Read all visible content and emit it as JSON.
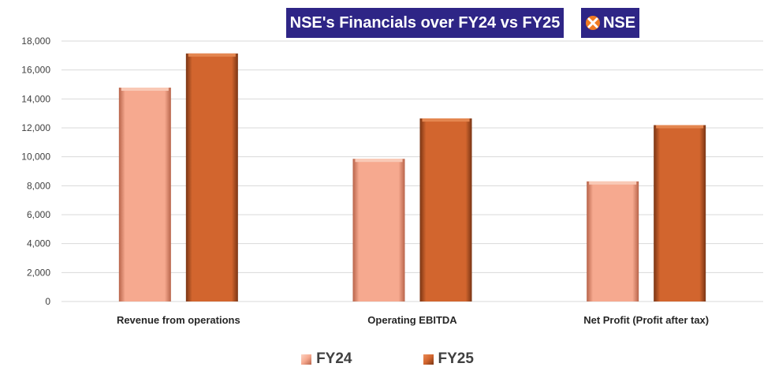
{
  "header": {
    "title": "NSE's Financials over FY24 vs FY25",
    "logo_text": "NSE"
  },
  "colors": {
    "banner": "#2e2586",
    "fy24": "#f6a98f",
    "fy25": "#d2652e"
  },
  "chart_data": {
    "type": "bar",
    "categories": [
      "Revenue from operations",
      "Operating EBITDA",
      "Net Profit (Profit after tax)"
    ],
    "series": [
      {
        "name": "FY24",
        "values": [
          14780,
          9860,
          8300
        ]
      },
      {
        "name": "FY25",
        "values": [
          17140,
          12650,
          12190
        ]
      }
    ],
    "ylim": [
      0,
      18000
    ],
    "yticks": [
      0,
      2000,
      4000,
      6000,
      8000,
      10000,
      12000,
      14000,
      16000,
      18000
    ],
    "ytick_labels": [
      "0",
      "2,000",
      "4,000",
      "6,000",
      "8,000",
      "10,000",
      "12,000",
      "14,000",
      "16,000",
      "18,000"
    ],
    "grid": true,
    "legend_position": "bottom"
  }
}
